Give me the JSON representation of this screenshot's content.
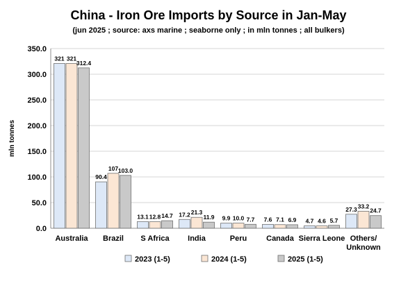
{
  "chart_data": {
    "type": "bar",
    "title": "China - Iron Ore Imports by Source in Jan-May",
    "subtitle": "(jun 2025 ; source: axs marine ; seaborne only ; in mln tonnes ; all bulkers)",
    "xlabel": "",
    "ylabel": "mln tonnes",
    "ylim": [
      0,
      350
    ],
    "yticks": [
      "0.0",
      "50.0",
      "100.0",
      "150.0",
      "200.0",
      "250.0",
      "300.0",
      "350.0"
    ],
    "categories": [
      "Australia",
      "Brazil",
      "S Africa",
      "India",
      "Peru",
      "Canada",
      "Sierra Leone",
      "Others/ Unknown"
    ],
    "category_lines": [
      [
        "Australia"
      ],
      [
        "Brazil"
      ],
      [
        "S Africa"
      ],
      [
        "India"
      ],
      [
        "Peru"
      ],
      [
        "Canada"
      ],
      [
        "Sierra Leone"
      ],
      [
        "Others/",
        "Unknown"
      ]
    ],
    "series": [
      {
        "name": "2023 (1-5)",
        "color": "#dde8f7",
        "values": [
          321,
          90.4,
          13.1,
          17.2,
          9.9,
          7.6,
          4.7,
          27.3
        ],
        "labels": [
          "321",
          "90.4",
          "13.1",
          "17.2",
          "9.9",
          "7.6",
          "4.7",
          "27.3"
        ]
      },
      {
        "name": "2024 (1-5)",
        "color": "#fbe6d4",
        "values": [
          321,
          107,
          12.8,
          21.3,
          10.0,
          7.1,
          4.6,
          33.2
        ],
        "labels": [
          "321",
          "107",
          "12.8",
          "21.3",
          "10.0",
          "7.1",
          "4.6",
          "33.2"
        ]
      },
      {
        "name": "2025 (1-5)",
        "color": "#c9c9c9",
        "values": [
          312.4,
          103.0,
          14.7,
          11.9,
          7.7,
          6.9,
          5.7,
          24.7
        ],
        "labels": [
          "312.4",
          "103.0",
          "14.7",
          "11.9",
          "7.7",
          "6.9",
          "5.7",
          "24.7"
        ]
      }
    ],
    "grid": true,
    "legend_position": "bottom"
  }
}
